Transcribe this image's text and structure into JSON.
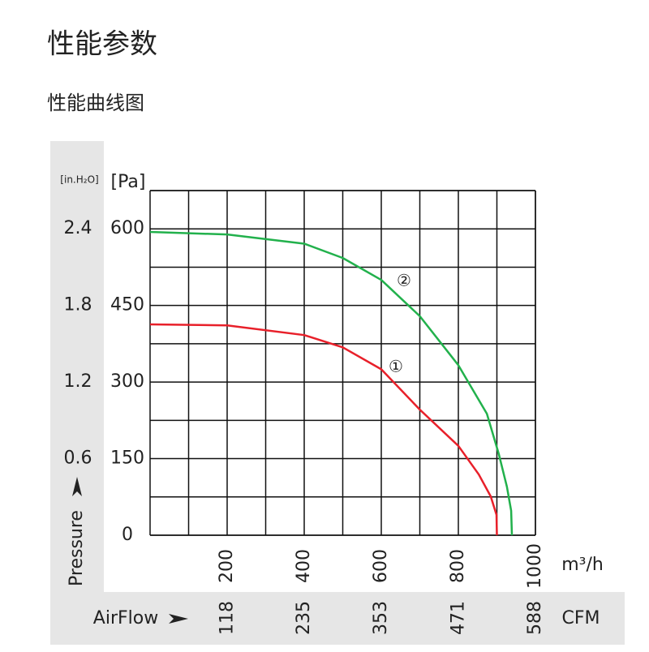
{
  "header": {
    "title": "性能参数",
    "subtitle": "性能曲线图"
  },
  "chart_data": {
    "type": "line",
    "ylabel": "Pressure",
    "xlabel": "AirFlow",
    "y_unit": "[Pa]",
    "y2_unit": "[in.H₂O]",
    "x_unit": "m³/h",
    "x2_unit": "CFM",
    "xlim": [
      0,
      1000
    ],
    "xticks": [
      200,
      400,
      600,
      800,
      1000
    ],
    "xgrid": [
      100,
      300,
      500,
      700,
      900
    ],
    "x2lim": [
      0,
      588
    ],
    "x2ticks": [
      118,
      235,
      353,
      471,
      588
    ],
    "ylim": [
      0,
      675
    ],
    "yticks": [
      0,
      150,
      300,
      450,
      600
    ],
    "ygrid": [
      75,
      225,
      375,
      525,
      675
    ],
    "y2lim": [
      0,
      2.7
    ],
    "y2ticks": [
      0.6,
      1.2,
      1.8,
      2.4
    ],
    "grid": true,
    "series": [
      {
        "name": "①",
        "color": "#e8202a",
        "x": [
          0,
          200,
          400,
          500,
          600,
          700,
          800,
          853,
          884,
          899,
          900
        ],
        "values": [
          413,
          411,
          392,
          368,
          325,
          246,
          175,
          119,
          76,
          40,
          0
        ]
      },
      {
        "name": "②",
        "color": "#22b14c",
        "x": [
          0,
          200,
          400,
          500,
          600,
          700,
          800,
          874,
          905,
          926,
          937,
          939
        ],
        "values": [
          594,
          589,
          571,
          543,
          500,
          429,
          333,
          238,
          159,
          95,
          48,
          0
        ]
      }
    ]
  }
}
